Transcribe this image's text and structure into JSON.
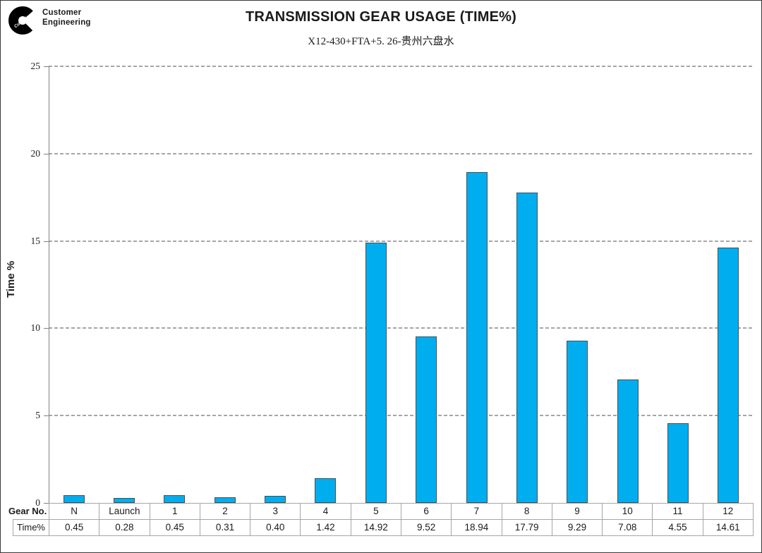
{
  "header": {
    "logo": {
      "brand": "Cummins",
      "line1": "Customer",
      "line2": "Engineering"
    },
    "title": "TRANSMISSION GEAR USAGE (TIME%)",
    "subtitle": "X12-430+FTA+5. 26-贵州六盘水"
  },
  "chart_data": {
    "type": "bar",
    "title": "TRANSMISSION GEAR USAGE (TIME%)",
    "subtitle": "X12-430+FTA+5. 26-贵州六盘水",
    "categories": [
      "N",
      "Launch",
      "1",
      "2",
      "3",
      "4",
      "5",
      "6",
      "7",
      "8",
      "9",
      "10",
      "11",
      "12"
    ],
    "values": [
      0.45,
      0.28,
      0.45,
      0.31,
      0.4,
      1.42,
      14.92,
      9.52,
      18.94,
      17.79,
      9.29,
      7.08,
      4.55,
      14.61
    ],
    "series_name": "Time%",
    "xlabel": "Gear No.",
    "ylabel": "Time %",
    "ylim": [
      0,
      25
    ],
    "yticks": [
      0,
      5,
      10,
      15,
      20,
      25
    ],
    "grid": "horizontal-dashed",
    "legend_position": "none",
    "colors": {
      "bar_fill": "#00AEEF",
      "bar_border": "#4D4D4D",
      "gridline": "#A6A6A6",
      "axis": "#7F7F7F",
      "table_border": "#A6A6A6",
      "text": "#1A1A1A"
    }
  },
  "table": {
    "row1_label": "Gear No.",
    "row2_label": "Time%"
  }
}
